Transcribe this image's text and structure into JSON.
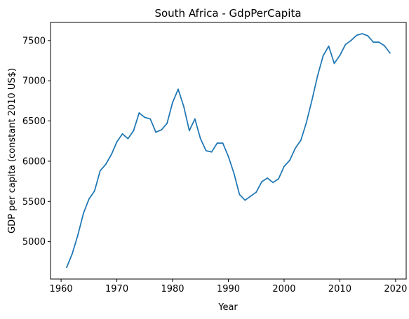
{
  "chart_data": {
    "type": "line",
    "title": "South Africa - GdpPerCapita",
    "xlabel": "Year",
    "ylabel": "GDP per capita (constant 2010 US$)",
    "xlim": [
      1958.1,
      2021.9
    ],
    "ylim": [
      4535,
      7725
    ],
    "xticks": [
      1960,
      1970,
      1980,
      1990,
      2000,
      2010,
      2020
    ],
    "yticks": [
      5000,
      5500,
      6000,
      6500,
      7000,
      7500
    ],
    "grid": false,
    "legend": "none",
    "series": [
      {
        "color": "#1f77b4",
        "x": [
          1961,
          1962,
          1963,
          1964,
          1965,
          1966,
          1967,
          1968,
          1969,
          1970,
          1971,
          1972,
          1973,
          1974,
          1975,
          1976,
          1977,
          1978,
          1979,
          1980,
          1981,
          1982,
          1983,
          1984,
          1985,
          1986,
          1987,
          1988,
          1989,
          1990,
          1991,
          1992,
          1993,
          1994,
          1995,
          1996,
          1997,
          1998,
          1999,
          2000,
          2001,
          2002,
          2003,
          2004,
          2005,
          2006,
          2007,
          2008,
          2009,
          2010,
          2011,
          2012,
          2013,
          2014,
          2015,
          2016,
          2017,
          2018,
          2019
        ],
        "y": [
          4680,
          4850,
          5080,
          5350,
          5530,
          5630,
          5880,
          5960,
          6080,
          6240,
          6340,
          6280,
          6380,
          6600,
          6545,
          6525,
          6360,
          6390,
          6470,
          6730,
          6895,
          6680,
          6380,
          6525,
          6280,
          6130,
          6115,
          6225,
          6225,
          6060,
          5850,
          5585,
          5515,
          5565,
          5615,
          5745,
          5790,
          5735,
          5780,
          5935,
          6010,
          6160,
          6260,
          6480,
          6760,
          7060,
          7310,
          7430,
          7215,
          7315,
          7450,
          7500,
          7565,
          7585,
          7560,
          7480,
          7480,
          7435,
          7345
        ]
      }
    ]
  }
}
